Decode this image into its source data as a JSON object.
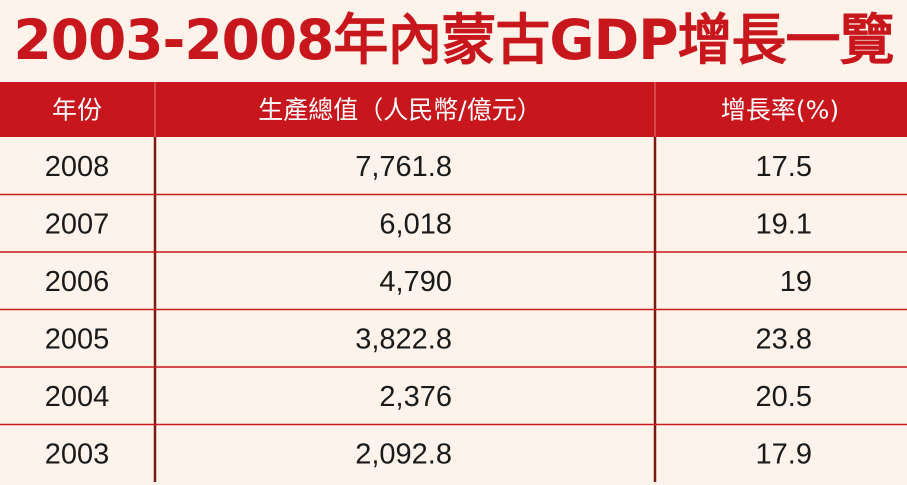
{
  "title": "2003-2008年內蒙古GDP增長一覽",
  "colors": {
    "accent": "#c8161d",
    "background": "#fdf3ea",
    "row_divider": "#c8161d",
    "column_divider": "#7a1a12",
    "text": "#1a1a1a",
    "header_text": "#ffffff"
  },
  "chart_data": {
    "type": "table",
    "columns": [
      "年份",
      "生產總值（人民幣/億元）",
      "增長率(%)"
    ],
    "rows": [
      [
        "2008",
        "7,761.8",
        "17.5"
      ],
      [
        "2007",
        "6,018",
        "19.1"
      ],
      [
        "2006",
        "4,790",
        "19"
      ],
      [
        "2005",
        "3,822.8",
        "23.8"
      ],
      [
        "2004",
        "2,376",
        "20.5"
      ],
      [
        "2003",
        "2,092.8",
        "17.9"
      ]
    ]
  }
}
